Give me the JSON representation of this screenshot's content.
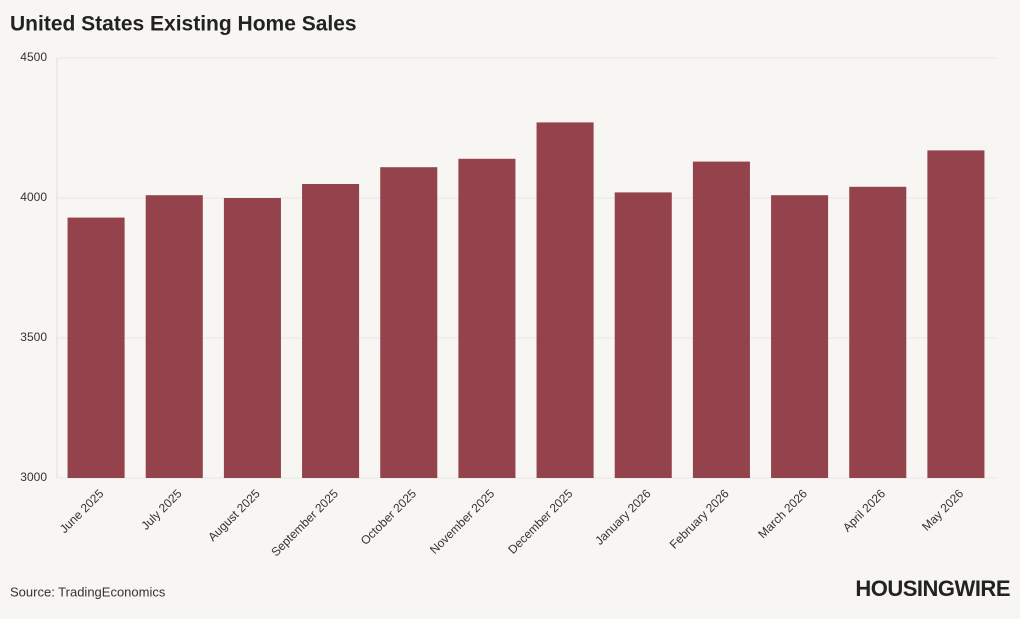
{
  "chart_data": {
    "type": "bar",
    "title": "United States Existing Home Sales",
    "categories": [
      "June 2025",
      "July 2025",
      "August 2025",
      "September 2025",
      "October 2025",
      "November 2025",
      "December 2025",
      "January 2026",
      "February 2026",
      "March 2026",
      "April 2026",
      "May 2026"
    ],
    "values": [
      3930,
      4010,
      4000,
      4050,
      4110,
      4140,
      4270,
      4020,
      4130,
      4010,
      4040,
      4170
    ],
    "color": "#94434d",
    "ylim": [
      3000,
      4500
    ],
    "yticks": [
      3000,
      3500,
      4000,
      4500
    ],
    "grid": true
  },
  "source": "Source: TradingEconomics",
  "logo": "HOUSINGWIRE"
}
